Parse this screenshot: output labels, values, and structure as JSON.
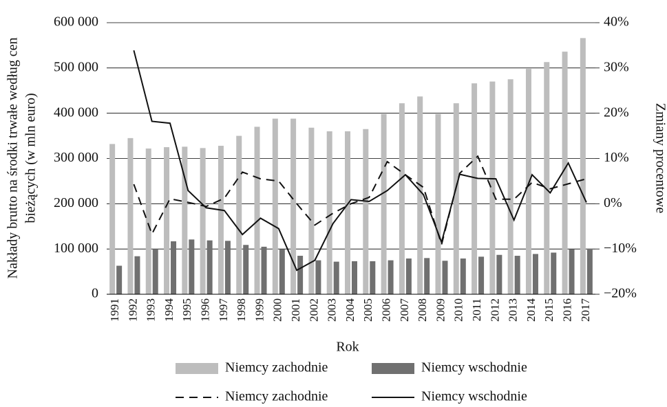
{
  "chart_data": {
    "type": "bar",
    "xlabel": "Rok",
    "ylabel": [
      "Nakłady  brutto na środki trwałe według cen",
      "bieżących (w mln euro)"
    ],
    "y2label": "Zmiany procentowe",
    "categories": [
      "1991",
      "1992",
      "1993",
      "1994",
      "1995",
      "1996",
      "1997",
      "1998",
      "1999",
      "2000",
      "2001",
      "2002",
      "2003",
      "2004",
      "2005",
      "2006",
      "2007",
      "2008",
      "2009",
      "2010",
      "2011",
      "2012",
      "2013",
      "2014",
      "2015",
      "2016",
      "2017"
    ],
    "series": [
      {
        "name": "Niemcy zachodnie",
        "type": "bar",
        "color": "#bdbdbd",
        "values": [
          332000,
          345000,
          322000,
          325000,
          326000,
          323000,
          328000,
          350000,
          370000,
          388000,
          388000,
          368000,
          360000,
          360000,
          365000,
          398000,
          422000,
          437000,
          398000,
          422000,
          466000,
          470000,
          475000,
          498000,
          513000,
          536000,
          566000
        ]
      },
      {
        "name": "Niemcy wschodnie",
        "type": "bar",
        "color": "#707070",
        "values": [
          63000,
          84000,
          100000,
          117000,
          121000,
          119000,
          118000,
          109000,
          105000,
          99000,
          85000,
          75000,
          72000,
          73000,
          73000,
          75000,
          79000,
          80000,
          74000,
          79000,
          83000,
          87000,
          85000,
          89000,
          92000,
          99000,
          101000
        ]
      },
      {
        "name": "Niemcy zachodnie",
        "type": "line",
        "dash": true,
        "color": "#111111",
        "axis": "y2",
        "values": [
          null,
          4.3,
          -6.7,
          1.1,
          0.3,
          -0.6,
          1.2,
          7.0,
          5.5,
          5.0,
          0,
          -4.7,
          -2.1,
          0,
          1.4,
          9.3,
          6.4,
          3.6,
          -9.0,
          6.7,
          10.5,
          1.0,
          1.0,
          4.7,
          3.3,
          4.4,
          5.5
        ]
      },
      {
        "name": "Niemcy wschodnie",
        "type": "line",
        "dash": false,
        "color": "#111111",
        "axis": "y2",
        "values": [
          null,
          33.9,
          18.2,
          17.8,
          2.9,
          -0.9,
          -1.5,
          -6.8,
          -3.2,
          -5.5,
          -14.7,
          -12.5,
          -4.4,
          0.9,
          0.5,
          2.9,
          6.4,
          2.0,
          -8.5,
          6.5,
          5.6,
          5.5,
          -3.6,
          6.4,
          2.4,
          9.0,
          0.3
        ]
      }
    ],
    "ylim": [
      0,
      600000
    ],
    "yticks": [
      0,
      {
        "value": 100000,
        "label": "100 000"
      },
      {
        "value": 200000,
        "label": "200 000"
      },
      {
        "value": 300000,
        "label": "300 000"
      },
      {
        "value": 400000,
        "label": "400 000"
      },
      {
        "value": 500000,
        "label": "500 000"
      },
      {
        "value": 600000,
        "label": "600 000"
      }
    ],
    "y2lim": [
      -20,
      40
    ],
    "y2ticks": [
      {
        "value": -20,
        "label": "−20%"
      },
      {
        "value": -10,
        "label": "−10%"
      },
      {
        "value": 0,
        "label": "0%"
      },
      {
        "value": 10,
        "label": "10%"
      },
      {
        "value": 20,
        "label": "20%"
      },
      {
        "value": 30,
        "label": "30%"
      },
      {
        "value": 40,
        "label": "40%"
      }
    ],
    "grid": true
  }
}
